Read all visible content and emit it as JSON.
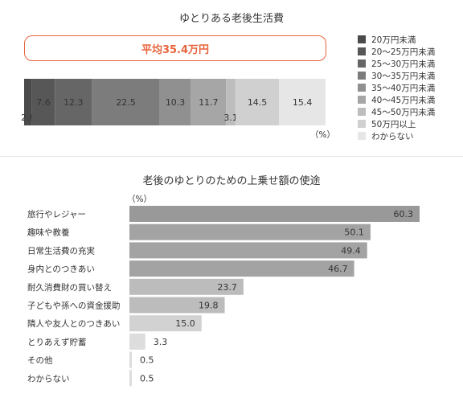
{
  "chart_data": [
    {
      "type": "bar",
      "subtype": "stacked-100",
      "title": "ゆとりある老後生活費",
      "average_label": "平均35.4万円",
      "unit_label": "（%）",
      "legend_position": "right",
      "series": [
        {
          "name": "20万円未満",
          "value": 2.6,
          "color": "#4a4a4a"
        },
        {
          "name": "20～25万円未満",
          "value": 7.6,
          "color": "#575757"
        },
        {
          "name": "25～30万円未満",
          "value": 12.3,
          "color": "#666666"
        },
        {
          "name": "30～35万円未満",
          "value": 22.5,
          "color": "#7c7c7c"
        },
        {
          "name": "35～40万円未満",
          "value": 10.3,
          "color": "#909090"
        },
        {
          "name": "40～45万円未満",
          "value": 11.7,
          "color": "#a6a6a6"
        },
        {
          "name": "45～50万円未満",
          "value": 3.1,
          "color": "#bdbdbd"
        },
        {
          "name": "50万円以上",
          "value": 14.5,
          "color": "#d0d0d0"
        },
        {
          "name": "わからない",
          "value": 15.4,
          "color": "#e6e6e6"
        }
      ]
    },
    {
      "type": "bar",
      "orientation": "horizontal",
      "title": "老後のゆとりのための上乗せ額の使途",
      "unit_label": "（%）",
      "xlim": [
        0,
        70
      ],
      "categories": [
        "旅行やレジャー",
        "趣味や教養",
        "日常生活費の充実",
        "身内とのつきあい",
        "耐久消費財の買い替え",
        "子どもや孫への資金援助",
        "隣人や友人とのつきあい",
        "とりあえず貯蓄",
        "その他",
        "わからない"
      ],
      "values": [
        60.3,
        50.1,
        49.4,
        46.7,
        23.7,
        19.8,
        15.0,
        3.3,
        0.5,
        0.5
      ],
      "value_labels": [
        "60.3",
        "50.1",
        "49.4",
        "46.7",
        "23.7",
        "19.8",
        "15.0",
        "3.3",
        "0.5",
        "0.5"
      ],
      "colors": [
        "#999999",
        "#a3a3a3",
        "#a3a3a3",
        "#a3a3a3",
        "#bcbcbc",
        "#bcbcbc",
        "#d2d2d2",
        "#dddddd",
        "#dddddd",
        "#dddddd"
      ]
    }
  ]
}
